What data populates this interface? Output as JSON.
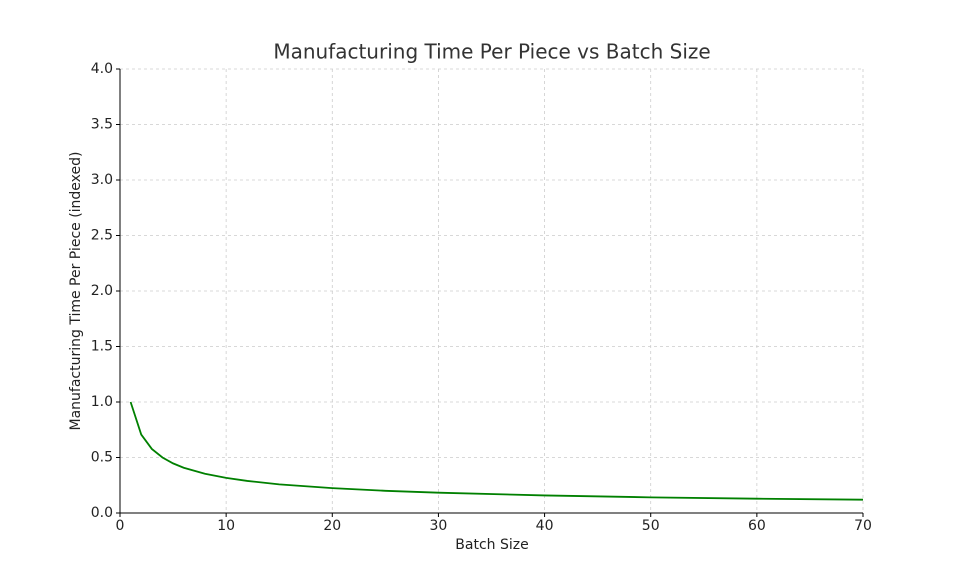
{
  "chart_data": {
    "type": "line",
    "title": "Manufacturing Time Per Piece vs Batch Size",
    "x_label": "Batch Size",
    "y_label": "Manufacturing Time Per Piece (indexed)",
    "x": [
      1,
      2,
      3,
      4,
      5,
      6,
      8,
      10,
      12,
      15,
      20,
      25,
      30,
      40,
      50,
      60,
      70
    ],
    "series": [
      {
        "name": "Manufacturing Time Per Piece",
        "color": "#008000",
        "values": [
          1.0,
          0.707,
          0.577,
          0.5,
          0.447,
          0.408,
          0.354,
          0.316,
          0.289,
          0.258,
          0.224,
          0.2,
          0.183,
          0.158,
          0.141,
          0.129,
          0.12
        ]
      }
    ],
    "xlim": [
      0,
      70
    ],
    "xticks": [
      0,
      10,
      20,
      30,
      40,
      50,
      60,
      70
    ],
    "ylim": [
      0,
      4
    ],
    "yticks": [
      {
        "value": 0,
        "label": "0.0"
      },
      {
        "value": 0.5,
        "label": "0.5"
      },
      {
        "value": 1,
        "label": "1.0"
      },
      {
        "value": 1.5,
        "label": "1.5"
      },
      {
        "value": 2,
        "label": "2.0"
      },
      {
        "value": 2.5,
        "label": "2.5"
      },
      {
        "value": 3,
        "label": "3.0"
      },
      {
        "value": 3.5,
        "label": "3.5"
      },
      {
        "value": 4,
        "label": "4.0"
      }
    ],
    "grid": true
  }
}
